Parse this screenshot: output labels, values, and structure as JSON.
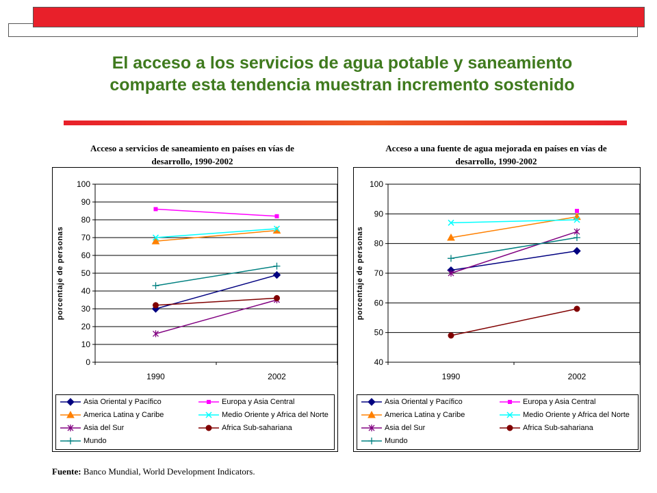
{
  "page": {
    "title_line1": "El acceso a los servicios de agua potable y saneamiento",
    "title_line2": "comparte esta tendencia muestran incremento sostenido",
    "source_label": "Fuente:",
    "source_text": "Banco Mundial, World Development Indicators."
  },
  "colors": {
    "header_red": "#e8202a",
    "title_green": "#3f7a1e",
    "rule_start": "#e8202a",
    "rule_end": "#f0b020"
  },
  "chart_data": [
    {
      "type": "line",
      "title_line1": "Acceso a servicios de saneamiento en países en vías de",
      "title_line2": "desarrollo, 1990-2002",
      "ylabel": "porcentaje de personas",
      "categories": [
        "1990",
        "2002"
      ],
      "ylim": [
        0,
        100
      ],
      "yticks": [
        "0",
        "10",
        "20",
        "30",
        "40",
        "50",
        "60",
        "70",
        "80",
        "90",
        "100"
      ],
      "series": [
        {
          "name": "Asia Oriental y Pacífico",
          "values": [
            30,
            49
          ],
          "color": "#000080",
          "marker": "diamond"
        },
        {
          "name": "Europa y Asia Central",
          "values": [
            86,
            82
          ],
          "color": "#ff00ff",
          "marker": "square"
        },
        {
          "name": "America Latina y Caribe",
          "values": [
            68,
            74
          ],
          "color": "#ff8000",
          "marker": "triangle"
        },
        {
          "name": "Medio Oriente y Africa del Norte",
          "values": [
            70,
            75
          ],
          "color": "#00ffff",
          "marker": "x"
        },
        {
          "name": "Asia del Sur",
          "values": [
            16,
            35
          ],
          "color": "#800080",
          "marker": "star"
        },
        {
          "name": "Africa Sub-sahariana",
          "values": [
            32,
            36
          ],
          "color": "#800000",
          "marker": "circle"
        },
        {
          "name": "Mundo",
          "values": [
            43,
            54
          ],
          "color": "#008080",
          "marker": "plus"
        }
      ]
    },
    {
      "type": "line",
      "title_line1": "Acceso a una fuente de agua mejorada en países en vías de",
      "title_line2": "desarrollo, 1990-2002",
      "ylabel": "porcentaje de personas",
      "categories": [
        "1990",
        "2002"
      ],
      "ylim": [
        40,
        100
      ],
      "yticks": [
        "40",
        "50",
        "60",
        "70",
        "80",
        "90",
        "100"
      ],
      "series": [
        {
          "name": "Asia Oriental y Pacífico",
          "values": [
            71,
            77.5
          ],
          "color": "#000080",
          "marker": "diamond"
        },
        {
          "name": "Europa y Asia Central",
          "values": [
            null,
            91
          ],
          "color": "#ff00ff",
          "marker": "square"
        },
        {
          "name": "America Latina y Caribe",
          "values": [
            82,
            89
          ],
          "color": "#ff8000",
          "marker": "triangle"
        },
        {
          "name": "Medio Oriente y Africa del Norte",
          "values": [
            87,
            88
          ],
          "color": "#00ffff",
          "marker": "x"
        },
        {
          "name": "Asia del Sur",
          "values": [
            70,
            84
          ],
          "color": "#800080",
          "marker": "star"
        },
        {
          "name": "Africa Sub-sahariana",
          "values": [
            49,
            58
          ],
          "color": "#800000",
          "marker": "circle"
        },
        {
          "name": "Mundo",
          "values": [
            75,
            82
          ],
          "color": "#008080",
          "marker": "plus"
        }
      ]
    }
  ]
}
